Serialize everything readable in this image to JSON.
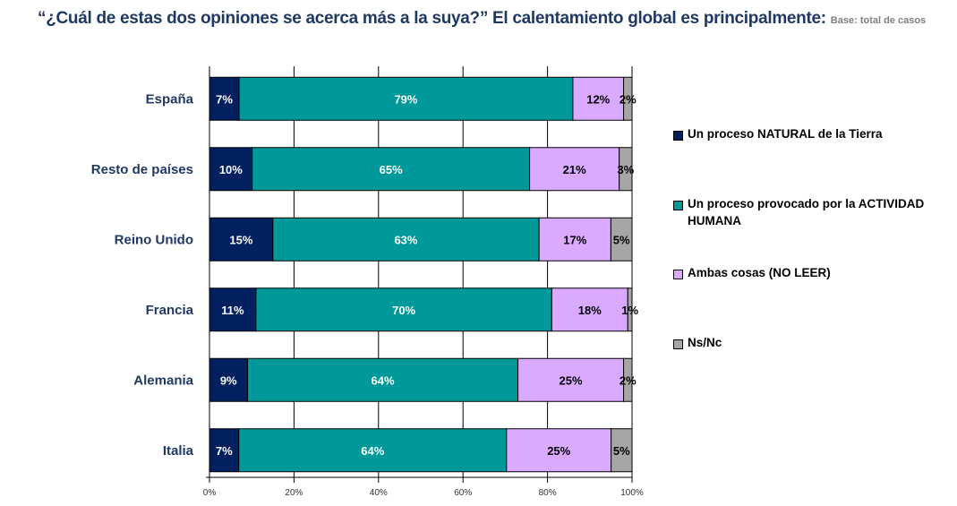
{
  "chart_data": {
    "type": "bar",
    "orientation": "horizontal",
    "stacked": "percent",
    "title": "“¿Cuál de estas dos opiniones se acerca más a la suya?” El calentamiento global es principalmente:",
    "subtitle": "Base: total de casos",
    "categories": [
      "España",
      "Resto de países",
      "Reino Unido",
      "Francia",
      "Alemania",
      "Italia"
    ],
    "series": [
      {
        "name": "Un proceso NATURAL de la Tierra",
        "color": "#002060",
        "label_color": "#ffffff",
        "values": [
          7,
          10,
          15,
          11,
          9,
          7
        ]
      },
      {
        "name": "Un proceso provocado por la ACTIVIDAD HUMANA",
        "color": "#009999",
        "label_color": "#ffffff",
        "values": [
          79,
          65,
          63,
          70,
          64,
          64
        ]
      },
      {
        "name": "Ambas cosas (NO LEER)",
        "color": "#d9aaff",
        "label_color": "#000000",
        "values": [
          12,
          21,
          17,
          18,
          25,
          25
        ]
      },
      {
        "name": "Ns/Nc",
        "color": "#a6a6a6",
        "label_color": "#000000",
        "values": [
          2,
          3,
          5,
          1,
          2,
          5
        ]
      }
    ],
    "xlim": [
      0,
      100
    ],
    "xticks": [
      "0%",
      "20%",
      "40%",
      "60%",
      "80%",
      "100%"
    ],
    "grid": true,
    "legend_position": "right"
  }
}
